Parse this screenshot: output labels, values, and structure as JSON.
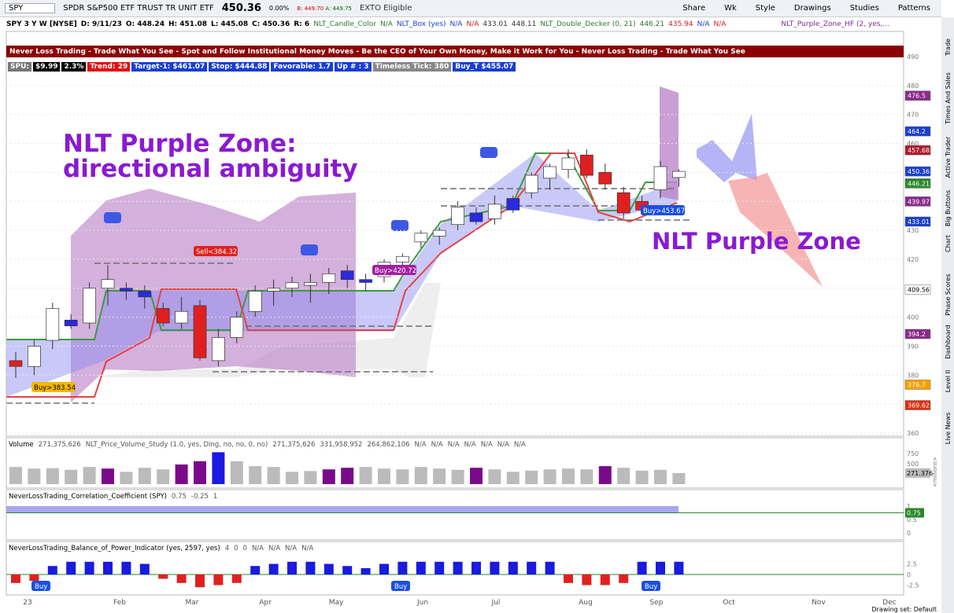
{
  "toolbar": {
    "symbol": "SPY",
    "description": "SPDR S&P500 ETF TRUST TR UNIT ETF",
    "last": "450.36",
    "change": "0.00%",
    "bid": "B: 449.70",
    "ask": "A: 449.75",
    "flag": "EXTO Eligible",
    "buttons": [
      "Share",
      "Wk",
      "Style",
      "Drawings",
      "Studies",
      "Patterns"
    ]
  },
  "study_line": [
    {
      "text": "SPY 3 Y W [NYSE]",
      "color": "#000"
    },
    {
      "text": "D: 9/11/23",
      "color": "#000"
    },
    {
      "text": "O: 448.24",
      "color": "#000"
    },
    {
      "text": "H: 451.08",
      "color": "#000"
    },
    {
      "text": "L: 445.08",
      "color": "#000"
    },
    {
      "text": "C: 450.36",
      "color": "#000"
    },
    {
      "text": "R: 6",
      "color": "#000"
    },
    {
      "text": "NLT_Candle_Color",
      "color": "#2a7a2a"
    },
    {
      "text": "N/A",
      "color": "#2a7a2a"
    },
    {
      "text": "NLT_Box (yes)",
      "color": "#1a3fd0"
    },
    {
      "text": "N/A",
      "color": "#1a3fd0"
    },
    {
      "text": "N/A",
      "color": "#d02020"
    },
    {
      "text": "433.01",
      "color": "#333"
    },
    {
      "text": "448.11",
      "color": "#333"
    },
    {
      "text": "NLT_Double_Decker (0, 21)",
      "color": "#2a7a2a"
    },
    {
      "text": "446.21",
      "color": "#2a7a2a"
    },
    {
      "text": "435.94",
      "color": "#d02020"
    },
    {
      "text": "N/A",
      "color": "#1a3fd0"
    },
    {
      "text": "N/A",
      "color": "#d02020"
    }
  ],
  "study_right": "NLT_Purple_Zone_HF (2, yes,...",
  "banner": "Never Loss Trading - Trade What You See - Spot and Follow Institutional Money Moves - Be the CEO of Your Own Money, Make it Work for You - Never Loss Trading - Trade What You See",
  "badges": [
    {
      "text": "SPU:",
      "color": "#777"
    },
    {
      "text": "$9.99",
      "color": "#000"
    },
    {
      "text": "2.3%",
      "color": "#000"
    },
    {
      "text": "Trend: 29",
      "color": "#e01010"
    },
    {
      "text": "Target-1: $461.07",
      "color": "#1a3fd0"
    },
    {
      "text": "Stop: $444.88",
      "color": "#1a3fd0"
    },
    {
      "text": "Favorable: 1.7",
      "color": "#1a3fd0"
    },
    {
      "text": "Up # : 3",
      "color": "#1a3fd0"
    },
    {
      "text": "Timeless Tick: 380",
      "color": "#888"
    },
    {
      "text": "Buy_T $455.07",
      "color": "#1a3fd0"
    }
  ],
  "annotations": {
    "zone_line_1": "NLT Purple Zone:",
    "zone_line_2": "directional ambiguity",
    "zone_right": "NLT Purple Zone"
  },
  "signals": [
    {
      "text": "Buy>383.54",
      "color": "#f5b800"
    },
    {
      "text": "Sell<384.32",
      "color": "#e02020"
    },
    {
      "text": "Buy>420.72",
      "color": "#a020a0"
    },
    {
      "text": "Buy>453.67",
      "color": "#1a50e0"
    }
  ],
  "price": {
    "ylim": [
      360,
      490
    ],
    "yticks": [
      490,
      480,
      470,
      460,
      450,
      440,
      430,
      420,
      410,
      400,
      390,
      380,
      370,
      360
    ],
    "labels": [
      {
        "value": 476.5,
        "color": "#8a2c8a"
      },
      {
        "value": 464.2,
        "color": "#1a3fd0"
      },
      {
        "value": 457.68,
        "color": "#b01a2a"
      },
      {
        "value": 450.36,
        "color": "#1a3fd0"
      },
      {
        "value": 446.21,
        "color": "#2a8a2a"
      },
      {
        "value": 439.97,
        "color": "#8a2c8a"
      },
      {
        "value": 433.01,
        "color": "#1a3fd0"
      },
      {
        "value": 409.56,
        "color": "#fff"
      },
      {
        "value": 394.2,
        "color": "#8a2c8a"
      },
      {
        "value": 376.7,
        "color": "#f5a000"
      },
      {
        "value": 369.62,
        "color": "#e03010"
      }
    ],
    "open": [
      385,
      383,
      392,
      399,
      398,
      410,
      410,
      409,
      403,
      398,
      404,
      385,
      393,
      402,
      409,
      410,
      411,
      412,
      416,
      413,
      414,
      419,
      426,
      428,
      432,
      436,
      434,
      441,
      443,
      448,
      451,
      456,
      450,
      443,
      440,
      444,
      448.24
    ],
    "high": [
      388,
      392,
      405,
      401,
      412,
      418,
      412,
      411,
      405,
      407,
      406,
      396,
      402,
      411,
      413,
      414,
      415,
      417,
      418,
      415,
      420,
      422,
      430,
      431,
      440,
      438,
      442,
      442,
      450,
      453,
      458,
      458,
      453,
      445,
      442,
      454,
      451.08
    ],
    "low": [
      379,
      380,
      389,
      396,
      396,
      404,
      406,
      403,
      397,
      396,
      385,
      383,
      391,
      400,
      404,
      407,
      405,
      408,
      410,
      409,
      412,
      415,
      424,
      425,
      430,
      432,
      432,
      436,
      441,
      444,
      448,
      448,
      444,
      434,
      436,
      441,
      445.08
    ],
    "close": [
      383,
      390,
      403,
      397,
      410,
      413,
      409,
      407,
      398,
      402,
      386,
      393,
      400,
      409,
      410,
      412,
      412,
      415,
      413,
      412,
      419,
      421,
      429,
      430,
      438,
      433,
      439,
      437,
      449,
      452,
      455,
      449,
      446,
      436,
      437,
      452,
      450.36
    ],
    "colors": [
      "#e02020",
      "#fff",
      "#fff",
      "#2a2ae0",
      "#fff",
      "#fff",
      "#2a2ae0",
      "#2a2ae0",
      "#e02020",
      "#fff",
      "#e02020",
      "#fff",
      "#fff",
      "#fff",
      "#fff",
      "#fff",
      "#fff",
      "#fff",
      "#2a2ae0",
      "#2a2ae0",
      "#fff",
      "#fff",
      "#fff",
      "#fff",
      "#fff",
      "#2a2ae0",
      "#fff",
      "#2a2ae0",
      "#fff",
      "#fff",
      "#fff",
      "#e02020",
      "#e02020",
      "#e02020",
      "#e02020",
      "#fff",
      "#fff"
    ]
  },
  "volume": {
    "header": [
      "Volume",
      "271,375,626",
      "NLT_Price_Volume_Study (1.0, yes, Ding, no, no, 0, no)",
      "271,375,626",
      "331,958,952",
      "264,862,106",
      "N/A",
      "N/A",
      "N/A",
      "N/A",
      "N/A",
      "N/A",
      "N/A"
    ],
    "ylim": [
      0,
      900
    ],
    "yticks": [
      750,
      500,
      250
    ],
    "last": 271.376,
    "unit": "<millions>",
    "values": [
      420,
      380,
      390,
      350,
      420,
      380,
      300,
      400,
      360,
      480,
      560,
      780,
      560,
      440,
      420,
      300,
      320,
      360,
      400,
      420,
      380,
      360,
      420,
      380,
      350,
      400,
      360,
      300,
      330,
      360,
      380,
      360,
      440,
      400,
      330,
      350,
      271
    ],
    "colors": [
      "#bbb",
      "#bbb",
      "#bbb",
      "#bbb",
      "#bbb",
      "#7a0a8a",
      "#bbb",
      "#bbb",
      "#bbb",
      "#7a0a8a",
      "#7a0a8a",
      "#1a1ae0",
      "#bbb",
      "#bbb",
      "#bbb",
      "#bbb",
      "#bbb",
      "#7a0a8a",
      "#7a0a8a",
      "#bbb",
      "#bbb",
      "#bbb",
      "#bbb",
      "#bbb",
      "#bbb",
      "#7a0a8a",
      "#bbb",
      "#bbb",
      "#bbb",
      "#bbb",
      "#bbb",
      "#bbb",
      "#7a0a8a",
      "#bbb",
      "#bbb",
      "#bbb",
      "#bbb"
    ]
  },
  "correlation": {
    "header": [
      "NeverLossTrading_Correlation_Coefficient (SPY)",
      "0.75",
      "-0.25",
      "1"
    ],
    "ylim": [
      -0.1,
      1.2
    ],
    "yticks": [
      1,
      0.5,
      0
    ],
    "last": 0.75
  },
  "bop": {
    "header": [
      "NeverLossTrading_Balance_of_Power_Indicator (yes, 2597, yes)",
      "4",
      "0",
      "0",
      "N/A",
      "N/A",
      "N/A",
      "N/A"
    ],
    "ylim": [
      -4,
      4
    ],
    "yticks": [
      2.5,
      0,
      -2.5
    ],
    "last": 0,
    "values": [
      -2,
      -1.5,
      2,
      3,
      3,
      3,
      3,
      2.5,
      -1,
      -2,
      -3,
      -2.5,
      -2,
      2,
      2.5,
      3,
      3,
      2.5,
      2,
      1.5,
      2.5,
      3,
      3,
      3,
      3,
      3,
      3,
      3,
      3,
      3,
      -2,
      -2.5,
      -2.5,
      -2,
      3,
      3,
      3
    ],
    "up_color": "#1a1ae0",
    "down_color": "#e02020",
    "buy_labels": [
      "Buy",
      "Buy",
      "Buy"
    ]
  },
  "time_axis": [
    "23",
    "Feb",
    "Mar",
    "Apr",
    "May",
    "Jun",
    "Jul",
    "Aug",
    "Sep",
    "Oct",
    "Nov",
    "Dec"
  ],
  "footer": "Drawing set: Default",
  "side_tabs": [
    "Trade",
    "Times And Sales",
    "Active Trader",
    "Big Buttons",
    "Chart",
    "Phase Scores",
    "Dashboard",
    "Level II",
    "Live News"
  ]
}
